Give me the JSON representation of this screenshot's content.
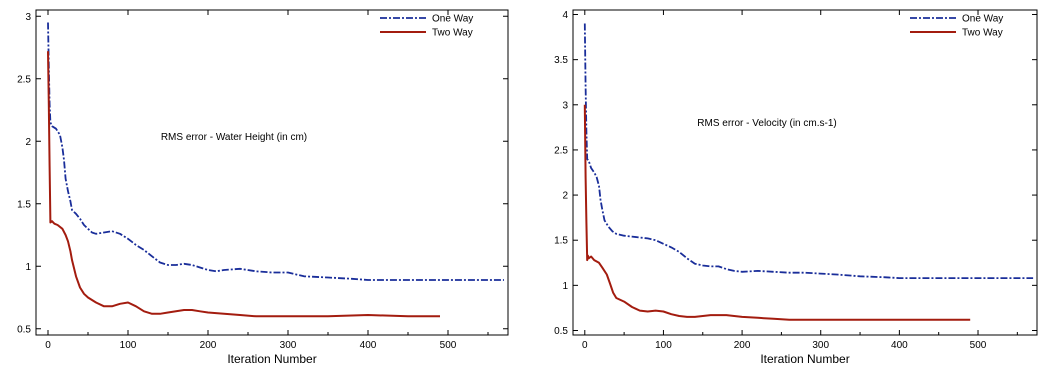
{
  "chart_data": [
    {
      "type": "line",
      "title": "",
      "annotation": "RMS error - Water Height (in cm)",
      "xlabel": "Iteration Number",
      "ylabel": "",
      "xlim": [
        -15,
        575
      ],
      "ylim": [
        0.45,
        3.05
      ],
      "xticks": [
        0,
        100,
        200,
        300,
        400,
        500
      ],
      "yticks": [
        0.5,
        1,
        1.5,
        2,
        2.5,
        3
      ],
      "legend_position": "top-right",
      "grid": false,
      "series": [
        {
          "name": "One Way",
          "color": "#1a2e9a",
          "style": "dash-dot",
          "points": [
            [
              0,
              2.95
            ],
            [
              1,
              2.6
            ],
            [
              2,
              2.3
            ],
            [
              3,
              2.15
            ],
            [
              5,
              2.12
            ],
            [
              10,
              2.1
            ],
            [
              15,
              2.05
            ],
            [
              18,
              1.95
            ],
            [
              20,
              1.85
            ],
            [
              22,
              1.7
            ],
            [
              25,
              1.6
            ],
            [
              28,
              1.52
            ],
            [
              30,
              1.45
            ],
            [
              35,
              1.42
            ],
            [
              40,
              1.38
            ],
            [
              45,
              1.33
            ],
            [
              50,
              1.3
            ],
            [
              55,
              1.27
            ],
            [
              60,
              1.26
            ],
            [
              70,
              1.27
            ],
            [
              80,
              1.28
            ],
            [
              90,
              1.26
            ],
            [
              100,
              1.22
            ],
            [
              110,
              1.17
            ],
            [
              120,
              1.13
            ],
            [
              130,
              1.08
            ],
            [
              140,
              1.03
            ],
            [
              150,
              1.01
            ],
            [
              160,
              1.01
            ],
            [
              170,
              1.02
            ],
            [
              180,
              1.01
            ],
            [
              190,
              0.99
            ],
            [
              200,
              0.97
            ],
            [
              210,
              0.96
            ],
            [
              220,
              0.97
            ],
            [
              240,
              0.98
            ],
            [
              260,
              0.96
            ],
            [
              280,
              0.95
            ],
            [
              300,
              0.95
            ],
            [
              320,
              0.92
            ],
            [
              350,
              0.91
            ],
            [
              380,
              0.9
            ],
            [
              400,
              0.89
            ],
            [
              450,
              0.89
            ],
            [
              500,
              0.89
            ],
            [
              570,
              0.89
            ]
          ]
        },
        {
          "name": "Two Way",
          "color": "#a31c0f",
          "style": "solid",
          "points": [
            [
              0,
              2.72
            ],
            [
              1,
              2.3
            ],
            [
              2,
              1.8
            ],
            [
              3,
              1.35
            ],
            [
              5,
              1.36
            ],
            [
              8,
              1.34
            ],
            [
              12,
              1.33
            ],
            [
              18,
              1.3
            ],
            [
              22,
              1.25
            ],
            [
              25,
              1.2
            ],
            [
              28,
              1.12
            ],
            [
              30,
              1.05
            ],
            [
              35,
              0.92
            ],
            [
              40,
              0.83
            ],
            [
              45,
              0.78
            ],
            [
              50,
              0.75
            ],
            [
              60,
              0.71
            ],
            [
              70,
              0.68
            ],
            [
              80,
              0.68
            ],
            [
              90,
              0.7
            ],
            [
              100,
              0.71
            ],
            [
              110,
              0.68
            ],
            [
              120,
              0.64
            ],
            [
              130,
              0.62
            ],
            [
              140,
              0.62
            ],
            [
              150,
              0.63
            ],
            [
              160,
              0.64
            ],
            [
              170,
              0.65
            ],
            [
              180,
              0.65
            ],
            [
              190,
              0.64
            ],
            [
              200,
              0.63
            ],
            [
              220,
              0.62
            ],
            [
              240,
              0.61
            ],
            [
              260,
              0.6
            ],
            [
              300,
              0.6
            ],
            [
              350,
              0.6
            ],
            [
              400,
              0.61
            ],
            [
              450,
              0.6
            ],
            [
              490,
              0.6
            ]
          ]
        }
      ]
    },
    {
      "type": "line",
      "title": "",
      "annotation": "RMS error - Velocity (in cm.s-1)",
      "xlabel": "Iteration Number",
      "ylabel": "",
      "xlim": [
        -15,
        575
      ],
      "ylim": [
        0.45,
        4.05
      ],
      "xticks": [
        0,
        100,
        200,
        300,
        400,
        500
      ],
      "yticks": [
        0.5,
        1,
        1.5,
        2,
        2.5,
        3,
        3.5,
        4
      ],
      "legend_position": "top-right",
      "grid": false,
      "series": [
        {
          "name": "One Way",
          "color": "#1a2e9a",
          "style": "dash-dot",
          "points": [
            [
              0,
              3.9
            ],
            [
              1,
              3.2
            ],
            [
              2,
              2.7
            ],
            [
              3,
              2.4
            ],
            [
              5,
              2.38
            ],
            [
              8,
              2.3
            ],
            [
              12,
              2.25
            ],
            [
              15,
              2.2
            ],
            [
              18,
              2.1
            ],
            [
              20,
              1.95
            ],
            [
              22,
              1.85
            ],
            [
              25,
              1.72
            ],
            [
              30,
              1.65
            ],
            [
              35,
              1.6
            ],
            [
              40,
              1.57
            ],
            [
              50,
              1.55
            ],
            [
              60,
              1.54
            ],
            [
              70,
              1.53
            ],
            [
              80,
              1.52
            ],
            [
              90,
              1.5
            ],
            [
              100,
              1.46
            ],
            [
              110,
              1.42
            ],
            [
              120,
              1.37
            ],
            [
              130,
              1.3
            ],
            [
              140,
              1.24
            ],
            [
              150,
              1.22
            ],
            [
              160,
              1.21
            ],
            [
              170,
              1.21
            ],
            [
              180,
              1.18
            ],
            [
              190,
              1.16
            ],
            [
              200,
              1.15
            ],
            [
              220,
              1.16
            ],
            [
              240,
              1.15
            ],
            [
              260,
              1.14
            ],
            [
              280,
              1.14
            ],
            [
              300,
              1.13
            ],
            [
              320,
              1.12
            ],
            [
              350,
              1.1
            ],
            [
              380,
              1.09
            ],
            [
              400,
              1.08
            ],
            [
              450,
              1.08
            ],
            [
              500,
              1.08
            ],
            [
              570,
              1.08
            ]
          ]
        },
        {
          "name": "Two Way",
          "color": "#a31c0f",
          "style": "solid",
          "points": [
            [
              0,
              3.0
            ],
            [
              1,
              2.2
            ],
            [
              2,
              1.7
            ],
            [
              3,
              1.28
            ],
            [
              4,
              1.33
            ],
            [
              5,
              1.3
            ],
            [
              8,
              1.32
            ],
            [
              12,
              1.28
            ],
            [
              18,
              1.25
            ],
            [
              22,
              1.2
            ],
            [
              28,
              1.12
            ],
            [
              32,
              1.02
            ],
            [
              36,
              0.92
            ],
            [
              40,
              0.86
            ],
            [
              50,
              0.82
            ],
            [
              60,
              0.76
            ],
            [
              70,
              0.72
            ],
            [
              80,
              0.71
            ],
            [
              90,
              0.72
            ],
            [
              100,
              0.71
            ],
            [
              110,
              0.68
            ],
            [
              120,
              0.66
            ],
            [
              130,
              0.65
            ],
            [
              140,
              0.65
            ],
            [
              150,
              0.66
            ],
            [
              160,
              0.67
            ],
            [
              170,
              0.67
            ],
            [
              180,
              0.67
            ],
            [
              190,
              0.66
            ],
            [
              200,
              0.65
            ],
            [
              220,
              0.64
            ],
            [
              240,
              0.63
            ],
            [
              260,
              0.62
            ],
            [
              300,
              0.62
            ],
            [
              350,
              0.62
            ],
            [
              400,
              0.62
            ],
            [
              450,
              0.62
            ],
            [
              490,
              0.62
            ]
          ]
        }
      ]
    }
  ]
}
